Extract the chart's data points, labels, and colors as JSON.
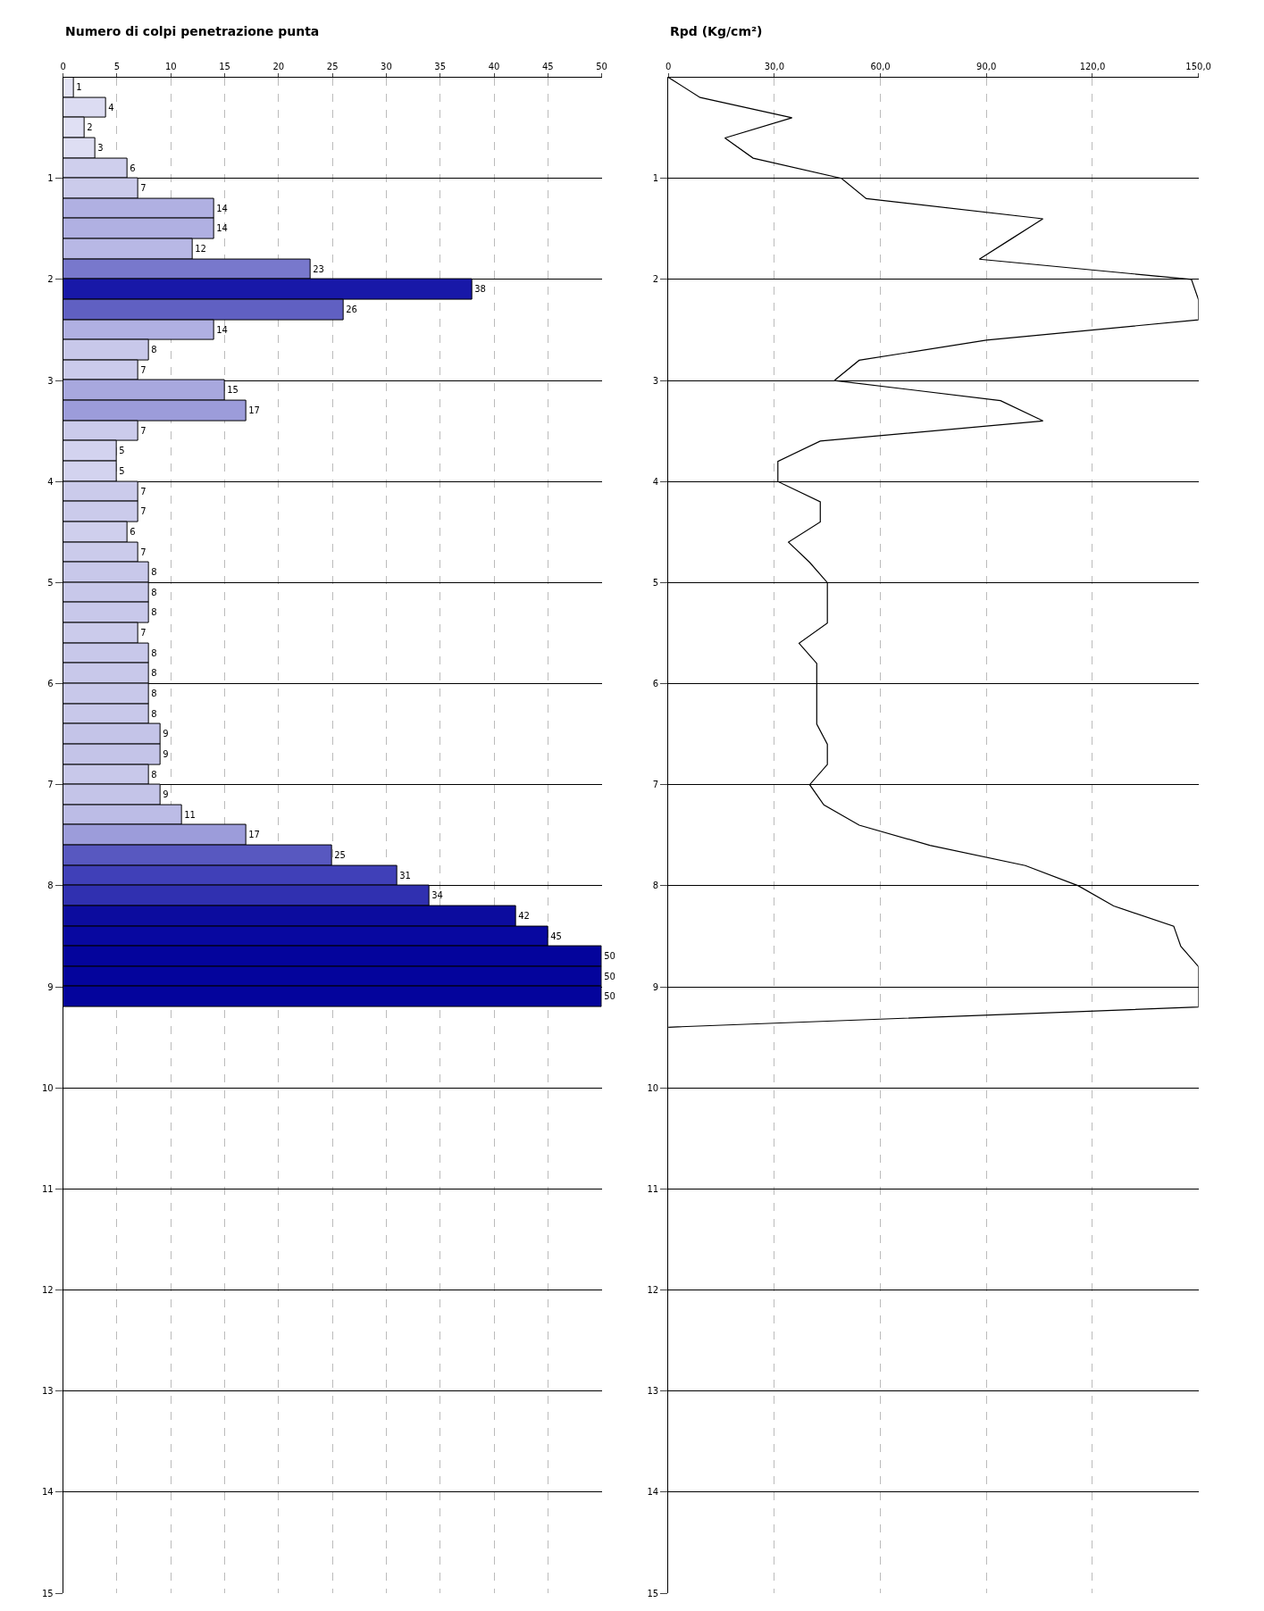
{
  "chart_data": [
    {
      "type": "bar",
      "orientation": "horizontal",
      "title": "Numero di colpi penetrazione punta",
      "x": [
        0.1,
        0.3,
        0.5,
        0.7,
        0.9,
        1.1,
        1.3,
        1.5,
        1.7,
        1.9,
        2.1,
        2.3,
        2.5,
        2.7,
        2.9,
        3.1,
        3.3,
        3.5,
        3.7,
        3.9,
        4.1,
        4.3,
        4.5,
        4.7,
        4.9,
        5.1,
        5.3,
        5.5,
        5.7,
        5.9,
        6.1,
        6.3,
        6.5,
        6.7,
        6.9,
        7.1,
        7.3,
        7.5,
        7.7,
        7.9,
        8.1,
        8.3,
        8.5,
        8.7,
        8.9,
        9.1
      ],
      "values": [
        1,
        4,
        2,
        3,
        6,
        7,
        14,
        14,
        12,
        23,
        38,
        26,
        14,
        8,
        7,
        15,
        17,
        7,
        5,
        5,
        7,
        7,
        6,
        7,
        8,
        8,
        8,
        7,
        8,
        8,
        8,
        8,
        9,
        9,
        8,
        9,
        11,
        17,
        25,
        31,
        34,
        42,
        45,
        50,
        50,
        50
      ],
      "colors": [
        "#e4e4f5",
        "#dcdcf2",
        "#e0e0f4",
        "#dedef3",
        "#cfcfed",
        "#cbcbeb",
        "#b0b0e2",
        "#b0b0e2",
        "#b8b8e5",
        "#7878cc",
        "#1818a8",
        "#6060c2",
        "#b0b0e2",
        "#c8c8ea",
        "#cbcbeb",
        "#a8a8de",
        "#9c9cda",
        "#cbcbeb",
        "#d3d3ef",
        "#d3d3ef",
        "#cbcbeb",
        "#cbcbeb",
        "#cfcfed",
        "#cbcbeb",
        "#c8c8ea",
        "#c8c8ea",
        "#c8c8ea",
        "#cbcbeb",
        "#c8c8ea",
        "#c8c8ea",
        "#c8c8ea",
        "#c8c8ea",
        "#c4c4e8",
        "#c4c4e8",
        "#c8c8ea",
        "#c4c4e8",
        "#bcbce6",
        "#9c9cda",
        "#5858c0",
        "#4040b8",
        "#3030b0",
        "#0c0c9e",
        "#0808a0",
        "#04049c",
        "#04049c",
        "#04049c"
      ],
      "xlim": [
        0,
        50
      ],
      "xticks": [
        0,
        5,
        10,
        15,
        20,
        25,
        30,
        35,
        40,
        45,
        50
      ],
      "ylim": [
        15,
        0
      ],
      "yticks": [
        1,
        2,
        3,
        4,
        5,
        6,
        7,
        8,
        9,
        10,
        11,
        12,
        13,
        14,
        15
      ],
      "data_labels": true,
      "grid": true
    },
    {
      "type": "line",
      "orientation": "horizontal",
      "title": "Rpd (Kg/cm²)",
      "x": [
        0,
        0.2,
        0.4,
        0.6,
        0.8,
        1.0,
        1.2,
        1.4,
        1.6,
        1.8,
        2.0,
        2.2,
        2.4,
        2.6,
        2.8,
        3.0,
        3.2,
        3.4,
        3.6,
        3.8,
        4.0,
        4.2,
        4.4,
        4.6,
        4.8,
        5.0,
        5.2,
        5.4,
        5.6,
        5.8,
        6.0,
        6.2,
        6.4,
        6.6,
        6.8,
        7.0,
        7.2,
        7.4,
        7.6,
        7.8,
        8.0,
        8.2,
        8.4,
        8.6,
        8.8,
        9.0,
        9.2,
        9.4
      ],
      "series": [
        {
          "color": "#000000",
          "values": [
            0,
            9,
            35,
            16,
            24,
            49,
            56,
            106,
            97,
            88,
            148,
            150,
            150,
            90,
            54,
            47,
            94,
            106,
            43,
            31,
            31,
            43,
            43,
            34,
            40,
            45,
            45,
            45,
            37,
            42,
            42,
            42,
            42,
            45,
            45,
            40,
            44,
            54,
            74,
            101,
            116,
            126,
            143,
            145,
            150,
            150,
            150,
            0
          ]
        }
      ],
      "xlim": [
        0,
        150
      ],
      "xticks": [
        0,
        {
          "value": 30,
          "label": "30,0"
        },
        {
          "value": 60,
          "label": "60,0"
        },
        {
          "value": 90,
          "label": "90,0"
        },
        {
          "value": 120,
          "label": "120,0"
        },
        {
          "value": 150,
          "label": "150,0"
        }
      ],
      "ylim": [
        15,
        0
      ],
      "yticks": [
        1,
        2,
        3,
        4,
        5,
        6,
        7,
        8,
        9,
        10,
        11,
        12,
        13,
        14,
        15
      ],
      "grid": true,
      "marker": "none",
      "line_style": "solid"
    }
  ]
}
